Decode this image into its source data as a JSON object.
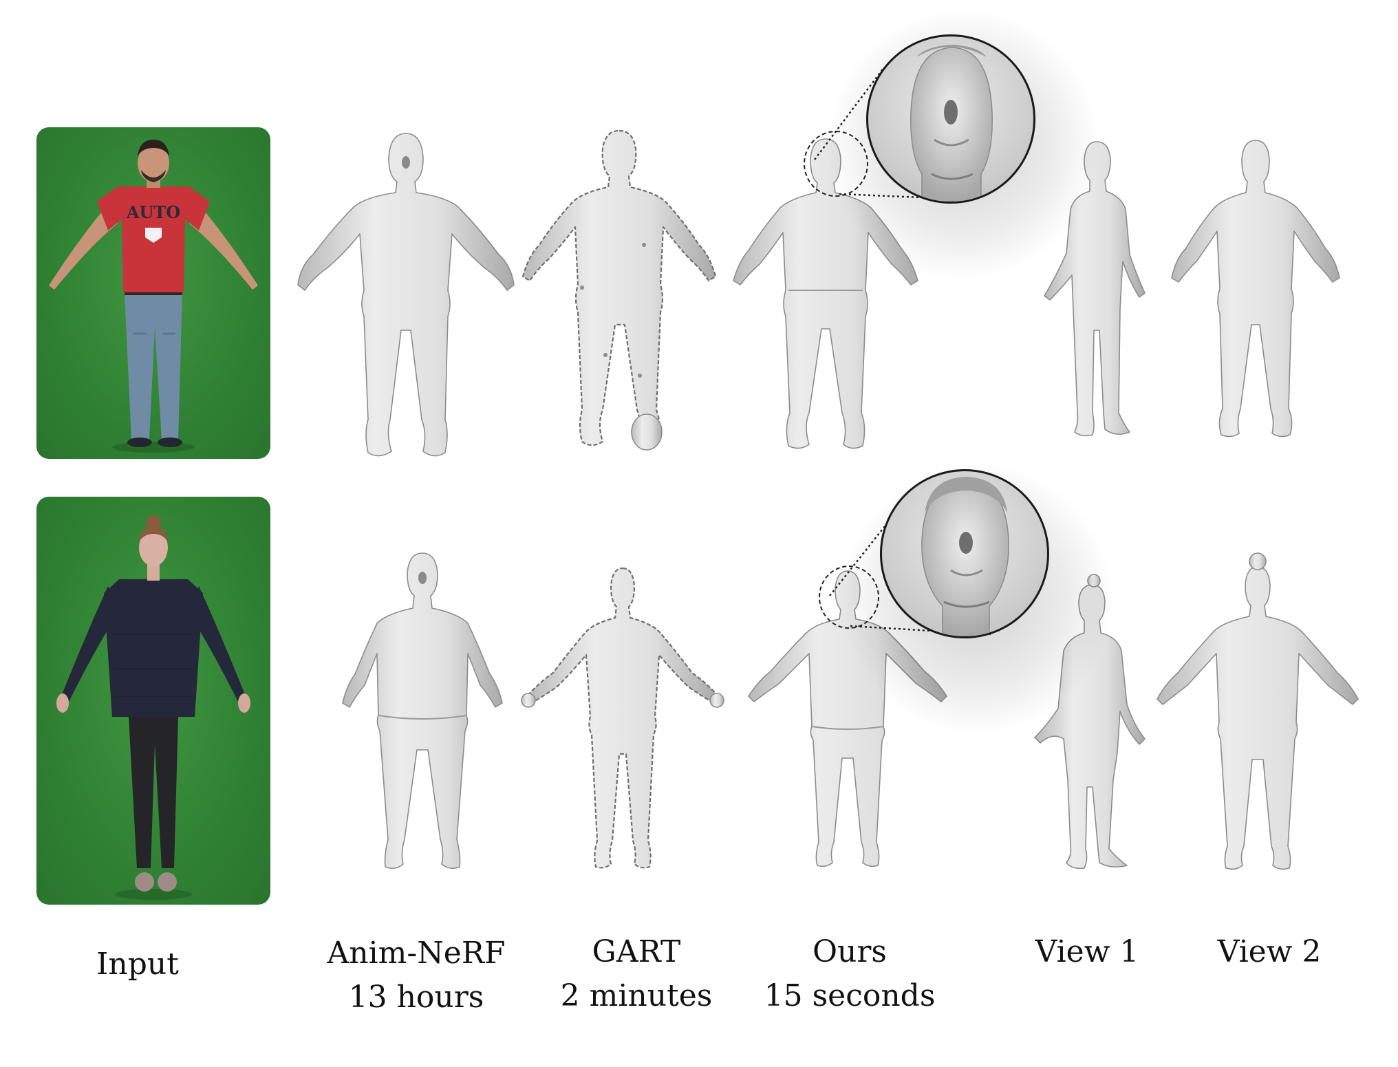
{
  "photo_text": "AUTO",
  "labels": {
    "input": "Input",
    "anim_nerf": {
      "name": "Anim-NeRF",
      "time": "13 hours"
    },
    "gart": {
      "name": "GART",
      "time": "2 minutes"
    },
    "ours": {
      "name": "Ours",
      "time": "15 seconds"
    },
    "view1": "View 1",
    "view2": "View 2"
  },
  "colors": {
    "green_screen": "#2f7f33",
    "red_shirt": "#c8343a",
    "navy_sweater": "#25283a",
    "mesh_gray": "#d6d6d6"
  }
}
